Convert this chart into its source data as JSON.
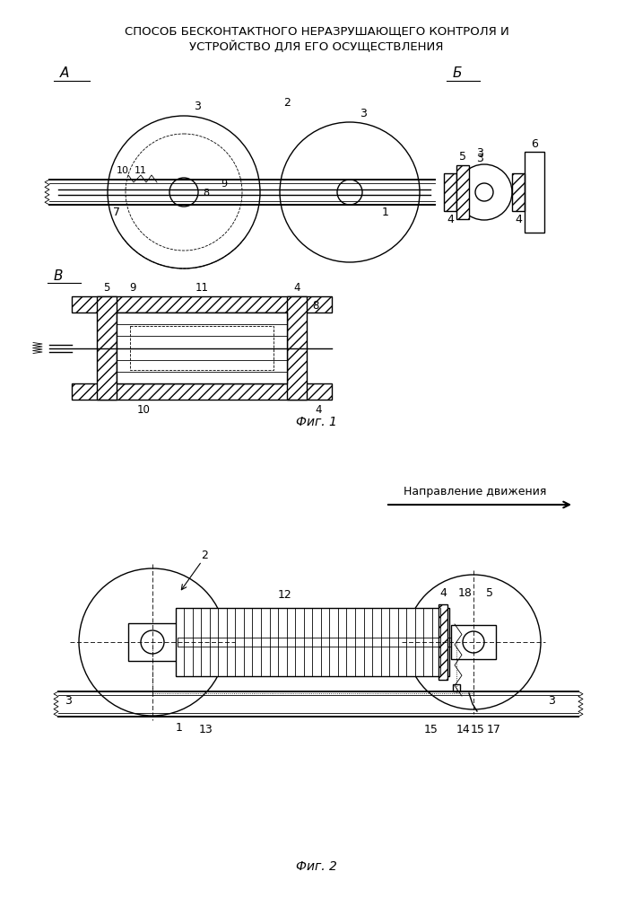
{
  "title_line1": "СПОСОБ БЕСКОНТАКТНОГО НЕРАЗРУШАЮЩЕГО КОНТРОЛЯ И",
  "title_line2": "УСТРОЙСТВО ДЛЯ ЕГО ОСУЩЕСТВЛЕНИЯ",
  "fig1_label": "Фиг. 1",
  "fig2_label": "Фиг. 2",
  "direction_label": "Направление движения",
  "bg_color": "#ffffff",
  "line_color": "#000000"
}
